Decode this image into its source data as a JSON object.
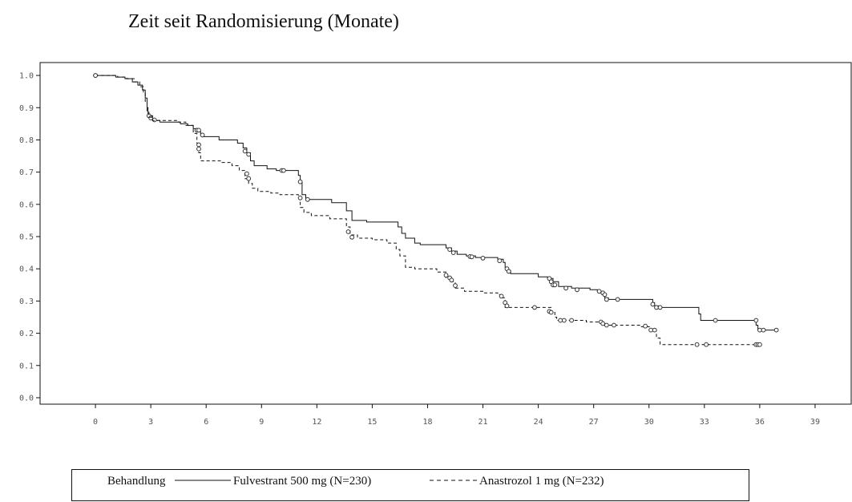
{
  "chart_data": {
    "type": "line",
    "title": "Zeit seit Randomisierung (Monate)",
    "xlabel": "",
    "ylabel": "",
    "xlim": [
      -3,
      41
    ],
    "ylim": [
      -0.02,
      1.04
    ],
    "xticks": [
      0,
      3,
      6,
      9,
      12,
      15,
      18,
      21,
      24,
      27,
      30,
      33,
      36,
      39
    ],
    "yticks": [
      0.0,
      0.1,
      0.2,
      0.3,
      0.4,
      0.5,
      0.6,
      0.7,
      0.8,
      0.9,
      1.0
    ],
    "grid": false,
    "legend": {
      "position": "bottom",
      "title": "Behandlung",
      "entries": [
        "Fulvestrant 500 mg (N=230)",
        "Anastrozol 1 mg (N=232)"
      ]
    },
    "series": [
      {
        "name": "Fulvestrant 500 mg (N=230)",
        "line_style": "solid",
        "color": "#111111",
        "steps": [
          [
            0,
            1.0
          ],
          [
            1.1,
            0.995
          ],
          [
            1.6,
            0.99
          ],
          [
            2.0,
            0.98
          ],
          [
            2.3,
            0.97
          ],
          [
            2.55,
            0.955
          ],
          [
            2.7,
            0.93
          ],
          [
            2.8,
            0.9
          ],
          [
            2.85,
            0.875
          ],
          [
            3.1,
            0.86
          ],
          [
            3.5,
            0.855
          ],
          [
            4.6,
            0.85
          ],
          [
            5.0,
            0.845
          ],
          [
            5.3,
            0.835
          ],
          [
            5.5,
            0.825
          ],
          [
            5.7,
            0.815
          ],
          [
            5.8,
            0.81
          ],
          [
            6.7,
            0.8
          ],
          [
            7.7,
            0.79
          ],
          [
            8.0,
            0.775
          ],
          [
            8.2,
            0.76
          ],
          [
            8.4,
            0.735
          ],
          [
            8.6,
            0.72
          ],
          [
            9.3,
            0.71
          ],
          [
            9.8,
            0.705
          ],
          [
            11.0,
            0.69
          ],
          [
            11.1,
            0.67
          ],
          [
            11.2,
            0.63
          ],
          [
            11.4,
            0.615
          ],
          [
            12.8,
            0.605
          ],
          [
            13.6,
            0.58
          ],
          [
            13.9,
            0.55
          ],
          [
            14.7,
            0.545
          ],
          [
            16.4,
            0.53
          ],
          [
            16.6,
            0.51
          ],
          [
            16.8,
            0.495
          ],
          [
            17.3,
            0.48
          ],
          [
            17.6,
            0.475
          ],
          [
            19.0,
            0.465
          ],
          [
            19.3,
            0.455
          ],
          [
            19.6,
            0.445
          ],
          [
            20.1,
            0.44
          ],
          [
            20.6,
            0.435
          ],
          [
            21.8,
            0.43
          ],
          [
            22.1,
            0.42
          ],
          [
            22.2,
            0.405
          ],
          [
            22.3,
            0.395
          ],
          [
            22.5,
            0.385
          ],
          [
            24.0,
            0.375
          ],
          [
            24.5,
            0.37
          ],
          [
            24.8,
            0.36
          ],
          [
            25.1,
            0.345
          ],
          [
            25.8,
            0.34
          ],
          [
            26.8,
            0.335
          ],
          [
            27.2,
            0.33
          ],
          [
            27.4,
            0.325
          ],
          [
            27.6,
            0.31
          ],
          [
            27.8,
            0.305
          ],
          [
            28.6,
            0.305
          ],
          [
            30.2,
            0.295
          ],
          [
            30.3,
            0.285
          ],
          [
            30.5,
            0.28
          ],
          [
            32.7,
            0.26
          ],
          [
            32.8,
            0.24
          ],
          [
            35.8,
            0.225
          ],
          [
            35.9,
            0.21
          ],
          [
            37.0,
            0.21
          ]
        ],
        "censored": [
          [
            0,
            1.0
          ],
          [
            2.9,
            0.875
          ],
          [
            3.0,
            0.868
          ],
          [
            3.2,
            0.862
          ],
          [
            5.5,
            0.83
          ],
          [
            5.6,
            0.83
          ],
          [
            5.8,
            0.815
          ],
          [
            8.1,
            0.765
          ],
          [
            8.3,
            0.755
          ],
          [
            10.1,
            0.705
          ],
          [
            10.2,
            0.705
          ],
          [
            11.1,
            0.67
          ],
          [
            11.5,
            0.615
          ],
          [
            19.2,
            0.46
          ],
          [
            19.4,
            0.45
          ],
          [
            20.3,
            0.438
          ],
          [
            20.4,
            0.437
          ],
          [
            21.0,
            0.433
          ],
          [
            21.9,
            0.425
          ],
          [
            22.3,
            0.4
          ],
          [
            22.4,
            0.392
          ],
          [
            24.6,
            0.37
          ],
          [
            24.7,
            0.36
          ],
          [
            24.8,
            0.35
          ],
          [
            24.9,
            0.35
          ],
          [
            25.5,
            0.34
          ],
          [
            26.1,
            0.335
          ],
          [
            27.3,
            0.33
          ],
          [
            27.5,
            0.325
          ],
          [
            27.6,
            0.32
          ],
          [
            27.7,
            0.305
          ],
          [
            28.3,
            0.305
          ],
          [
            30.2,
            0.29
          ],
          [
            30.4,
            0.28
          ],
          [
            30.6,
            0.28
          ],
          [
            33.6,
            0.24
          ],
          [
            35.8,
            0.24
          ],
          [
            36.0,
            0.21
          ],
          [
            36.2,
            0.21
          ],
          [
            36.9,
            0.21
          ]
        ]
      },
      {
        "name": "Anastrozol 1 mg (N=232)",
        "line_style": "dashed",
        "color": "#111111",
        "steps": [
          [
            0,
            1.0
          ],
          [
            1.2,
            0.995
          ],
          [
            1.7,
            0.99
          ],
          [
            2.1,
            0.98
          ],
          [
            2.4,
            0.965
          ],
          [
            2.6,
            0.945
          ],
          [
            2.7,
            0.92
          ],
          [
            2.8,
            0.89
          ],
          [
            2.9,
            0.87
          ],
          [
            3.1,
            0.86
          ],
          [
            4.5,
            0.855
          ],
          [
            4.9,
            0.845
          ],
          [
            5.3,
            0.82
          ],
          [
            5.5,
            0.79
          ],
          [
            5.6,
            0.76
          ],
          [
            5.7,
            0.735
          ],
          [
            6.8,
            0.73
          ],
          [
            7.4,
            0.72
          ],
          [
            7.8,
            0.705
          ],
          [
            8.1,
            0.68
          ],
          [
            8.3,
            0.665
          ],
          [
            8.5,
            0.65
          ],
          [
            8.8,
            0.64
          ],
          [
            9.5,
            0.635
          ],
          [
            10.0,
            0.63
          ],
          [
            11.0,
            0.62
          ],
          [
            11.1,
            0.59
          ],
          [
            11.3,
            0.575
          ],
          [
            11.7,
            0.565
          ],
          [
            12.7,
            0.555
          ],
          [
            13.6,
            0.53
          ],
          [
            13.8,
            0.505
          ],
          [
            14.2,
            0.495
          ],
          [
            15.0,
            0.49
          ],
          [
            15.8,
            0.48
          ],
          [
            16.3,
            0.46
          ],
          [
            16.5,
            0.44
          ],
          [
            16.8,
            0.405
          ],
          [
            17.3,
            0.4
          ],
          [
            18.5,
            0.39
          ],
          [
            19.0,
            0.37
          ],
          [
            19.2,
            0.36
          ],
          [
            19.5,
            0.34
          ],
          [
            20.0,
            0.33
          ],
          [
            21.0,
            0.325
          ],
          [
            21.8,
            0.32
          ],
          [
            22.0,
            0.31
          ],
          [
            22.2,
            0.28
          ],
          [
            24.7,
            0.265
          ],
          [
            24.9,
            0.25
          ],
          [
            25.0,
            0.24
          ],
          [
            26.6,
            0.235
          ],
          [
            27.5,
            0.225
          ],
          [
            28.2,
            0.225
          ],
          [
            29.5,
            0.22
          ],
          [
            30.1,
            0.21
          ],
          [
            30.2,
            0.21
          ],
          [
            30.4,
            0.185
          ],
          [
            30.6,
            0.165
          ],
          [
            35.9,
            0.165
          ]
        ],
        "censored": [
          [
            0,
            1.0
          ],
          [
            5.6,
            0.785
          ],
          [
            5.6,
            0.772
          ],
          [
            8.2,
            0.695
          ],
          [
            8.3,
            0.68
          ],
          [
            11.1,
            0.62
          ],
          [
            13.7,
            0.515
          ],
          [
            13.9,
            0.498
          ],
          [
            19.0,
            0.38
          ],
          [
            19.2,
            0.372
          ],
          [
            19.3,
            0.365
          ],
          [
            19.5,
            0.348
          ],
          [
            22.0,
            0.315
          ],
          [
            22.2,
            0.295
          ],
          [
            22.3,
            0.285
          ],
          [
            23.8,
            0.28
          ],
          [
            24.6,
            0.268
          ],
          [
            24.7,
            0.265
          ],
          [
            25.2,
            0.24
          ],
          [
            25.4,
            0.24
          ],
          [
            25.8,
            0.24
          ],
          [
            27.4,
            0.235
          ],
          [
            27.5,
            0.23
          ],
          [
            27.7,
            0.225
          ],
          [
            28.1,
            0.225
          ],
          [
            29.8,
            0.222
          ],
          [
            30.1,
            0.21
          ],
          [
            30.3,
            0.21
          ],
          [
            32.6,
            0.165
          ],
          [
            33.1,
            0.165
          ],
          [
            35.8,
            0.165
          ],
          [
            35.9,
            0.165
          ],
          [
            36.0,
            0.165
          ]
        ]
      }
    ]
  }
}
